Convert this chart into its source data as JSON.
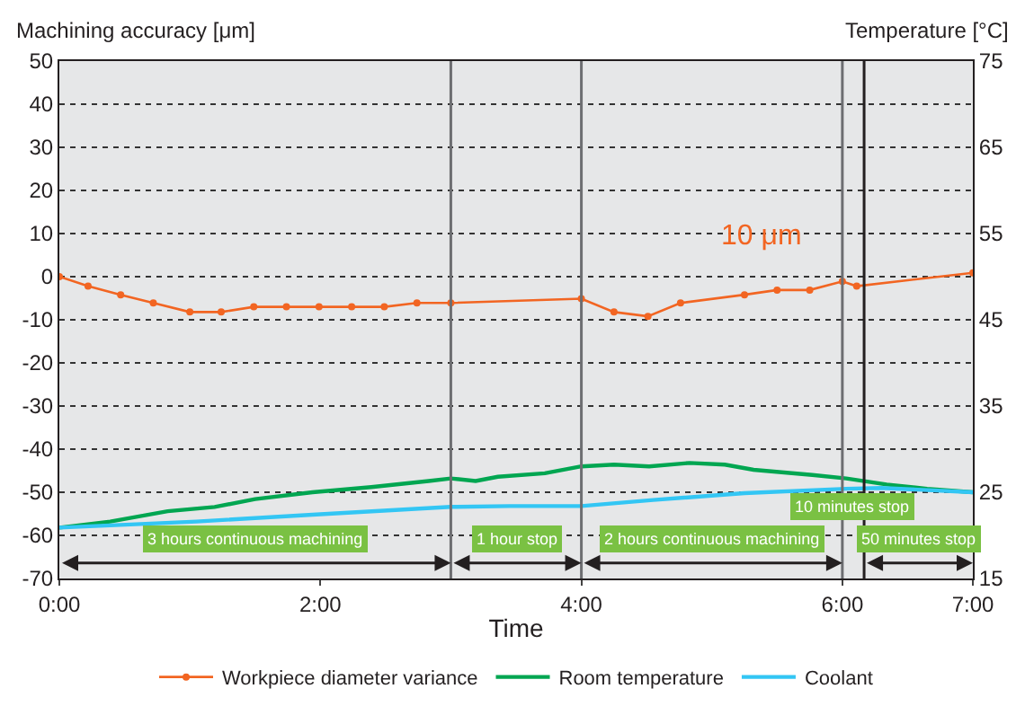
{
  "chart_data": {
    "type": "line",
    "ylabel": "Machining accuracy [μm]",
    "y2label": "Temperature [°C]",
    "xlabel": "Time",
    "xlim": [
      0,
      7
    ],
    "xticks": [
      {
        "value": 0,
        "label": "0:00"
      },
      {
        "value": 2,
        "label": "2:00"
      },
      {
        "value": 4,
        "label": "4:00"
      },
      {
        "value": 6,
        "label": "6:00"
      },
      {
        "value": 7,
        "label": "7:00"
      }
    ],
    "ylim": [
      -70,
      50
    ],
    "yticks": [
      -70,
      -60,
      -50,
      -40,
      -30,
      -20,
      -10,
      0,
      10,
      20,
      30,
      40,
      50
    ],
    "y2lim": [
      15,
      75
    ],
    "y2ticks": [
      15,
      25,
      35,
      45,
      55,
      65,
      75
    ],
    "grid": "y",
    "legend": "bottom",
    "line_style": "solid",
    "series": [
      {
        "name": "Workpiece diameter variance",
        "color": "#f26522",
        "marker": "circle",
        "x": [
          0,
          0.22,
          0.47,
          0.72,
          1.0,
          1.24,
          1.49,
          1.74,
          1.99,
          2.24,
          2.49,
          2.74,
          3.0,
          4.0,
          4.25,
          4.51,
          4.76,
          5.25,
          5.5,
          5.75,
          6.0,
          6.11,
          7.0
        ],
        "values": [
          0,
          -2.2,
          -4.2,
          -6.1,
          -8.2,
          -8.2,
          -7,
          -7,
          -7,
          -7,
          -7,
          -6.1,
          -6.1,
          -5.1,
          -8.2,
          -9.2,
          -6.1,
          -4.2,
          -3.1,
          -3.1,
          -1.1,
          -2.2,
          0.9
        ]
      },
      {
        "name": "Room temperature",
        "color": "#00a651",
        "marker": "none",
        "axis": "y2",
        "x": [
          0,
          0.39,
          0.83,
          1.19,
          1.5,
          1.94,
          2.39,
          2.83,
          3.0,
          3.19,
          3.36,
          3.72,
          4.0,
          4.25,
          4.52,
          4.83,
          5.1,
          5.32,
          5.77,
          6.03,
          6.34,
          6.65,
          7.0
        ],
        "values": [
          20.9,
          21.6,
          22.8,
          23.3,
          24.2,
          25.0,
          25.6,
          26.3,
          26.6,
          26.3,
          26.8,
          27.2,
          28.0,
          28.2,
          28.0,
          28.4,
          28.2,
          27.6,
          27.0,
          26.6,
          25.9,
          25.4,
          25.0
        ]
      },
      {
        "name": "Coolant",
        "color": "#33c6f4",
        "marker": "none",
        "axis": "y2",
        "x": [
          0,
          1.05,
          1.94,
          3.0,
          3.45,
          4.0,
          4.55,
          5.25,
          6.03,
          6.3,
          6.58,
          7.0
        ],
        "values": [
          20.9,
          21.6,
          22.4,
          23.3,
          23.4,
          23.4,
          24.1,
          24.9,
          25.4,
          25.5,
          25.3,
          25.0
        ]
      }
    ],
    "ref_lines": [
      {
        "axis": "x",
        "value": 3,
        "color": "#6d6e71"
      },
      {
        "axis": "x",
        "value": 4,
        "color": "#6d6e71"
      },
      {
        "axis": "x",
        "value": 6,
        "color": "#6d6e71"
      },
      {
        "axis": "x",
        "value": 6.1667,
        "color": "#231f20"
      }
    ],
    "annotations": [
      "10 μm",
      "3 hours continuous machining",
      "1 hour stop",
      "2 hours continuous machining",
      "10 minutes stop",
      "50 minutes stop"
    ]
  }
}
